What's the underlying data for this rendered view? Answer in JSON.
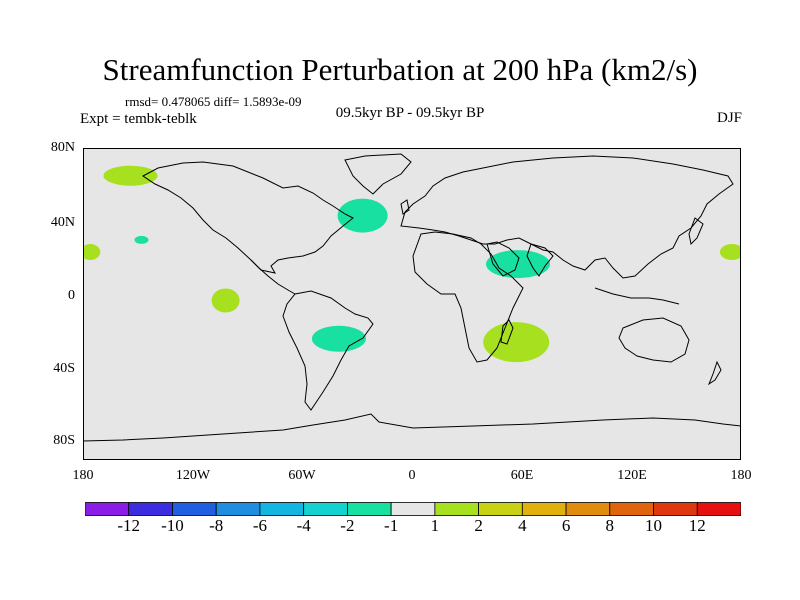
{
  "title": "Streamfunction Perturbation at 200 hPa (km2/s)",
  "stats": "rmsd= 0.478065 diff= 1.5893e-09",
  "experiment": "Expt = tembk-teblk",
  "period": "09.5kyr BP - 09.5kyr BP",
  "season": "DJF",
  "lat_labels": [
    "80N",
    "40N",
    "0",
    "40S",
    "80S"
  ],
  "lon_labels": [
    "180",
    "120W",
    "60W",
    "0",
    "60E",
    "120E",
    "180"
  ],
  "colorbar": {
    "labels": [
      "-12",
      "-10",
      "-8",
      "-6",
      "-4",
      "-2",
      "-1",
      "1",
      "2",
      "4",
      "6",
      "8",
      "10",
      "12"
    ],
    "colors": [
      "#8a1ee6",
      "#3c2ee0",
      "#1f5fe0",
      "#1e8fe0",
      "#12b6e0",
      "#14d2d0",
      "#18e0a0",
      "#e6e6e6",
      "#a6e01e",
      "#c8d214",
      "#e0b00e",
      "#e08c0e",
      "#e0640e",
      "#e0380e",
      "#e61010"
    ]
  },
  "colors": {
    "background": "#e6e6e6",
    "negative": "#18e0a0",
    "positive": "#a6e01e",
    "coast": "#000000"
  },
  "anomalies": [
    {
      "sign": "positive",
      "lon": -154,
      "lat": 74
    },
    {
      "sign": "negative",
      "lon": -27,
      "lat": 51
    },
    {
      "sign": "negative",
      "lon": -148,
      "lat": 37
    },
    {
      "sign": "positive",
      "lon": -176,
      "lat": 30
    },
    {
      "sign": "positive",
      "lon": 175,
      "lat": 30
    },
    {
      "sign": "negative",
      "lon": 58,
      "lat": 23
    },
    {
      "sign": "positive",
      "lon": -102,
      "lat": 2
    },
    {
      "sign": "negative",
      "lon": -40,
      "lat": -20
    },
    {
      "sign": "positive",
      "lon": 57,
      "lat": -22
    }
  ]
}
